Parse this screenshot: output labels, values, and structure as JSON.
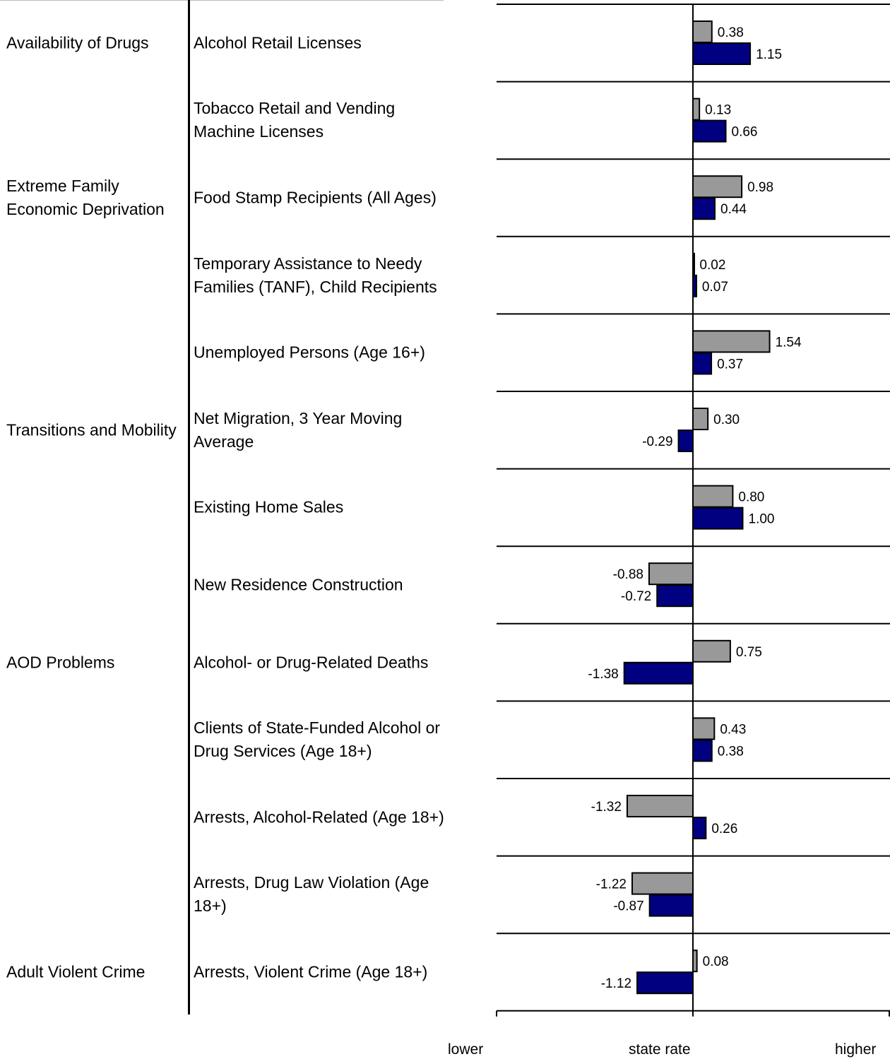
{
  "chart_data": {
    "type": "bar",
    "orientation": "horizontal",
    "categories": [
      "Alcohol Retail Licenses",
      "Tobacco Retail and Vending Machine Licenses",
      "Food Stamp Recipients (All Ages)",
      "Temporary Assistance to Needy Families (TANF), Child Recipients",
      "Unemployed Persons (Age 16+)",
      "Net Migration, 3 Year Moving Average",
      "Existing Home Sales",
      "New Residence Construction",
      "Alcohol- or Drug-Related Deaths",
      "Clients of State-Funded Alcohol or Drug Services (Age 18+)",
      "Arrests, Alcohol-Related (Age 18+)",
      "Arrests, Drug Law Violation (Age 18+)",
      "Arrests, Violent Crime (Age 18+)"
    ],
    "series": [
      {
        "color": "#999999",
        "values": [
          0.38,
          0.13,
          0.98,
          0.02,
          1.54,
          0.3,
          0.8,
          -0.88,
          0.75,
          0.43,
          -1.32,
          -1.22,
          0.08
        ],
        "labels": [
          "0.38",
          "0.13",
          "0.98",
          "0.02",
          "1.54",
          "0.30",
          "0.80",
          "-0.88",
          "0.75",
          "0.43",
          "-1.32",
          "-1.22",
          "0.08"
        ]
      },
      {
        "color": "#000080",
        "values": [
          1.15,
          0.66,
          0.44,
          0.07,
          0.37,
          -0.29,
          1.0,
          -0.72,
          -1.38,
          0.38,
          0.26,
          -0.87,
          -1.12
        ],
        "labels": [
          "1.15",
          "0.66",
          "0.44",
          "0.07",
          "0.37",
          "-0.29",
          "1.00",
          "-0.72",
          "-1.38",
          "0.38",
          "0.26",
          "-0.87",
          "-1.12"
        ]
      }
    ],
    "xlim": [
      -3.9,
      4.0
    ],
    "gridlines": "horizontal separators between categories",
    "axis_captions": {
      "left": "lower",
      "center": "state rate",
      "right": "higher"
    }
  },
  "domains": [
    {
      "label": "Availability of Drugs",
      "row": 0
    },
    {
      "label": "Extreme Family Economic Deprivation",
      "row": 2
    },
    {
      "label": "Transitions and Mobility",
      "row": 5
    },
    {
      "label": "AOD Problems",
      "row": 8
    },
    {
      "label": "Adult Violent Crime",
      "row": 12
    }
  ]
}
